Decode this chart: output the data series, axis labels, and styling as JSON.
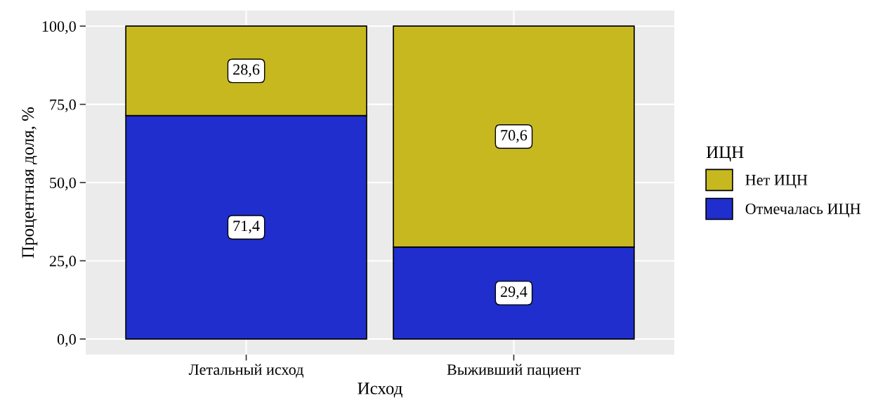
{
  "chart_data": {
    "type": "bar",
    "stacked": true,
    "xlabel": "Исход",
    "ylabel": "Процентная доля, %",
    "legend_title": "ИЦН",
    "legend": "right",
    "categories": [
      "Летальный исход",
      "Выживший пациент"
    ],
    "series": [
      {
        "name": "Отмечалась ИЦН",
        "color": "#1f2ecc",
        "values": [
          71.4,
          29.4
        ],
        "value_labels": [
          "71,4",
          "29,4"
        ]
      },
      {
        "name": "Нет ИЦН",
        "color": "#c8b820",
        "values": [
          28.6,
          70.6
        ],
        "value_labels": [
          "28,6",
          "70,6"
        ]
      }
    ],
    "ylim": [
      -5,
      105
    ],
    "yticks": [
      {
        "value": 0,
        "label": "0,0"
      },
      {
        "value": 25,
        "label": "25,0"
      },
      {
        "value": 50,
        "label": "50,0"
      },
      {
        "value": 75,
        "label": "75,0"
      },
      {
        "value": 100,
        "label": "100,0"
      }
    ],
    "grid": true
  }
}
